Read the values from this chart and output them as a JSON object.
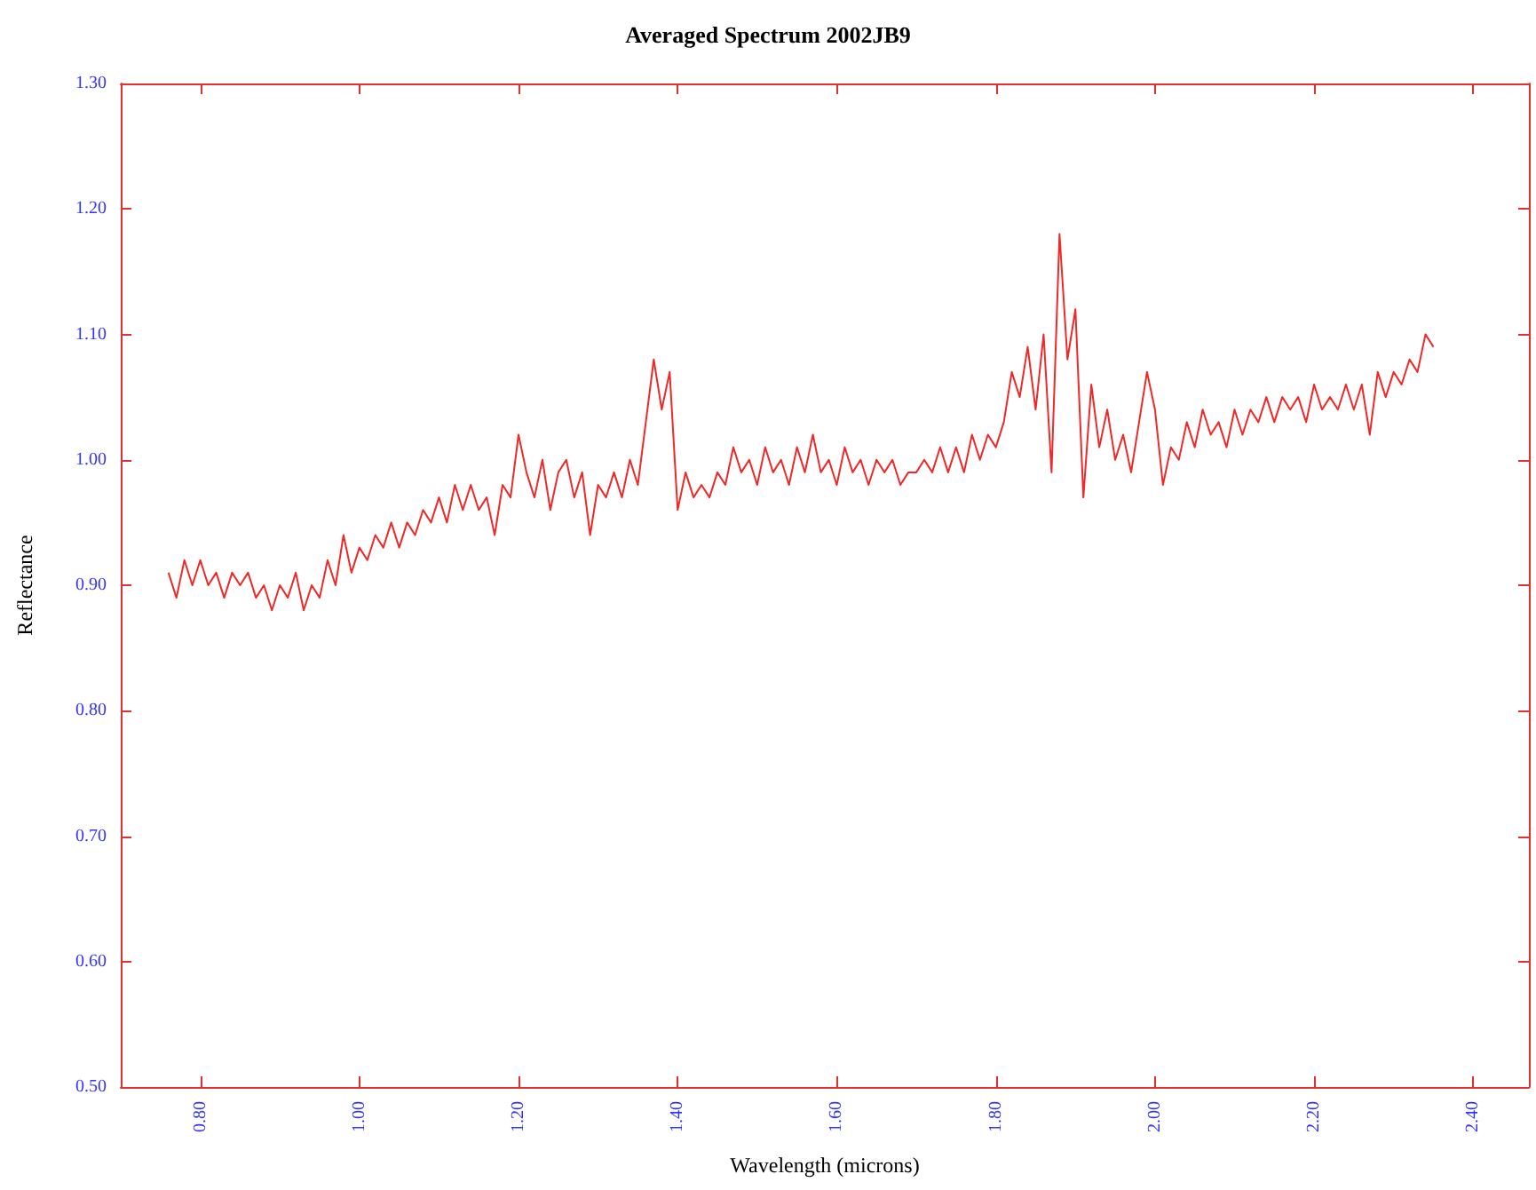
{
  "chart_data": {
    "type": "line",
    "title": "Averaged Spectrum 2002JB9",
    "xlabel": "Wavelength (microns)",
    "ylabel": "Reflectance",
    "x": [
      0.76,
      0.77,
      0.78,
      0.79,
      0.8,
      0.81,
      0.82,
      0.83,
      0.84,
      0.85,
      0.86,
      0.87,
      0.88,
      0.89,
      0.9,
      0.91,
      0.92,
      0.93,
      0.94,
      0.95,
      0.96,
      0.97,
      0.98,
      0.99,
      1.0,
      1.01,
      1.02,
      1.03,
      1.04,
      1.05,
      1.06,
      1.07,
      1.08,
      1.09,
      1.1,
      1.11,
      1.12,
      1.13,
      1.14,
      1.15,
      1.16,
      1.17,
      1.18,
      1.19,
      1.2,
      1.21,
      1.22,
      1.23,
      1.24,
      1.25,
      1.26,
      1.27,
      1.28,
      1.29,
      1.3,
      1.31,
      1.32,
      1.33,
      1.34,
      1.35,
      1.36,
      1.37,
      1.38,
      1.39,
      1.4,
      1.41,
      1.42,
      1.43,
      1.44,
      1.45,
      1.46,
      1.47,
      1.48,
      1.49,
      1.5,
      1.51,
      1.52,
      1.53,
      1.54,
      1.55,
      1.56,
      1.57,
      1.58,
      1.59,
      1.6,
      1.61,
      1.62,
      1.63,
      1.64,
      1.65,
      1.66,
      1.67,
      1.68,
      1.69,
      1.7,
      1.71,
      1.72,
      1.73,
      1.74,
      1.75,
      1.76,
      1.77,
      1.78,
      1.79,
      1.8,
      1.81,
      1.82,
      1.83,
      1.84,
      1.85,
      1.86,
      1.87,
      1.88,
      1.89,
      1.9,
      1.91,
      1.92,
      1.93,
      1.94,
      1.95,
      1.96,
      1.97,
      1.98,
      1.99,
      2.0,
      2.01,
      2.02,
      2.03,
      2.04,
      2.05,
      2.06,
      2.07,
      2.08,
      2.09,
      2.1,
      2.11,
      2.12,
      2.13,
      2.14,
      2.15,
      2.16,
      2.17,
      2.18,
      2.19,
      2.2,
      2.21,
      2.22,
      2.23,
      2.24,
      2.25,
      2.26,
      2.27,
      2.28,
      2.29,
      2.3,
      2.31,
      2.32,
      2.33,
      2.34,
      2.35
    ],
    "series": [
      {
        "color": "#f02828",
        "values": [
          0.91,
          0.89,
          0.92,
          0.9,
          0.92,
          0.9,
          0.91,
          0.89,
          0.91,
          0.9,
          0.91,
          0.89,
          0.9,
          0.88,
          0.9,
          0.89,
          0.91,
          0.88,
          0.9,
          0.89,
          0.92,
          0.9,
          0.94,
          0.91,
          0.93,
          0.92,
          0.94,
          0.93,
          0.95,
          0.93,
          0.95,
          0.94,
          0.96,
          0.95,
          0.97,
          0.95,
          0.98,
          0.96,
          0.98,
          0.96,
          0.97,
          0.94,
          0.98,
          0.97,
          1.02,
          0.99,
          0.97,
          1.0,
          0.96,
          0.99,
          1.0,
          0.97,
          0.99,
          0.94,
          0.98,
          0.97,
          0.99,
          0.97,
          1.0,
          0.98,
          1.03,
          1.08,
          1.04,
          1.07,
          0.96,
          0.99,
          0.97,
          0.98,
          0.97,
          0.99,
          0.98,
          1.01,
          0.99,
          1.0,
          0.98,
          1.01,
          0.99,
          1.0,
          0.98,
          1.01,
          0.99,
          1.02,
          0.99,
          1.0,
          0.98,
          1.01,
          0.99,
          1.0,
          0.98,
          1.0,
          0.99,
          1.0,
          0.98,
          0.99,
          0.99,
          1.0,
          0.99,
          1.01,
          0.99,
          1.01,
          0.99,
          1.02,
          1.0,
          1.02,
          1.01,
          1.03,
          1.07,
          1.05,
          1.09,
          1.04,
          1.1,
          0.99,
          1.18,
          1.08,
          1.12,
          0.97,
          1.06,
          1.01,
          1.04,
          1.0,
          1.02,
          0.99,
          1.03,
          1.07,
          1.04,
          0.98,
          1.01,
          1.0,
          1.03,
          1.01,
          1.04,
          1.02,
          1.03,
          1.01,
          1.04,
          1.02,
          1.04,
          1.03,
          1.05,
          1.03,
          1.05,
          1.04,
          1.05,
          1.03,
          1.06,
          1.04,
          1.05,
          1.04,
          1.06,
          1.04,
          1.06,
          1.02,
          1.07,
          1.05,
          1.07,
          1.06,
          1.08,
          1.07,
          1.1,
          1.09
        ]
      }
    ],
    "xlim": [
      0.7,
      2.47
    ],
    "xticks": [
      {
        "value": 0.8,
        "label": "0.80"
      },
      {
        "value": 1.0,
        "label": "1.00"
      },
      {
        "value": 1.2,
        "label": "1.20"
      },
      {
        "value": 1.4,
        "label": "1.40"
      },
      {
        "value": 1.6,
        "label": "1.60"
      },
      {
        "value": 1.8,
        "label": "1.80"
      },
      {
        "value": 2.0,
        "label": "2.00"
      },
      {
        "value": 2.2,
        "label": "2.20"
      },
      {
        "value": 2.4,
        "label": "2.40"
      }
    ],
    "ylim": [
      0.5,
      1.3
    ],
    "yticks": [
      {
        "value": 0.5,
        "label": "0.50"
      },
      {
        "value": 0.6,
        "label": "0.60"
      },
      {
        "value": 0.7,
        "label": "0.70"
      },
      {
        "value": 0.8,
        "label": "0.80"
      },
      {
        "value": 0.9,
        "label": "0.90"
      },
      {
        "value": 1.0,
        "label": "1.00"
      },
      {
        "value": 1.1,
        "label": "1.10"
      },
      {
        "value": 1.2,
        "label": "1.20"
      },
      {
        "value": 1.3,
        "label": "1.30"
      }
    ],
    "line_style": "solid"
  }
}
